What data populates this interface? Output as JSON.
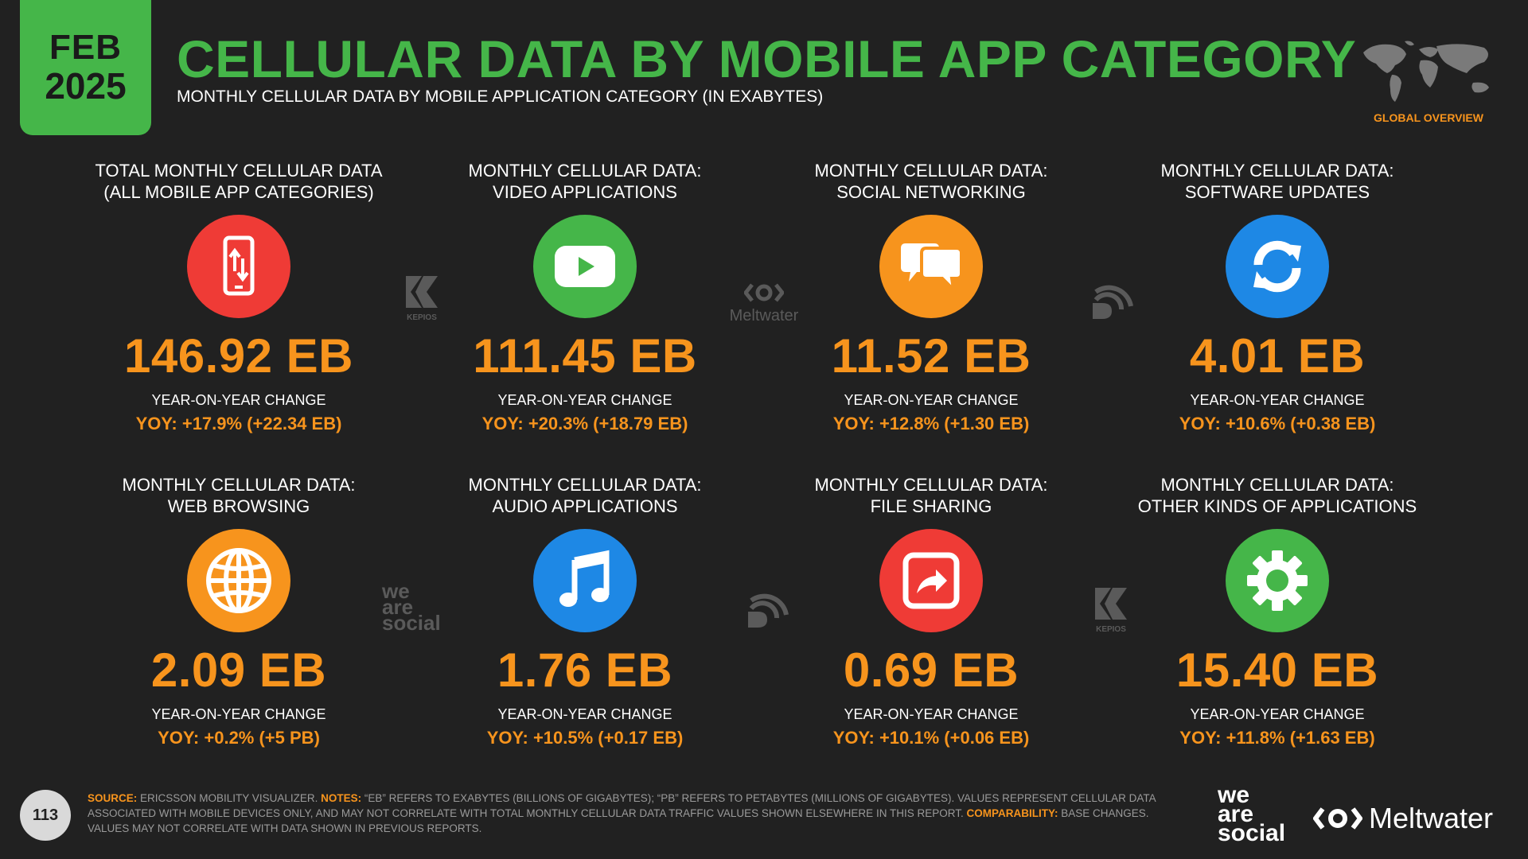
{
  "header": {
    "month": "FEB",
    "year": "2025",
    "title": "CELLULAR DATA BY MOBILE APP CATEGORY",
    "subtitle": "MONTHLY CELLULAR DATA BY MOBILE APPLICATION CATEGORY (IN EXABYTES)",
    "region_label": "GLOBAL OVERVIEW"
  },
  "colors": {
    "background": "#212121",
    "accent_green": "#45b649",
    "accent_orange": "#f7941d",
    "red": "#ef3b36",
    "blue": "#1e88e5"
  },
  "cards": [
    {
      "label_line1": "TOTAL MONTHLY CELLULAR DATA",
      "label_line2": "(ALL MOBILE APP CATEGORIES)",
      "value": "146.92 EB",
      "yoy_label": "YEAR-ON-YEAR CHANGE",
      "yoy": "YOY: +17.9% (+22.34 EB)",
      "icon": "mobile-data-icon",
      "color": "#ef3b36"
    },
    {
      "label_line1": "MONTHLY CELLULAR DATA:",
      "label_line2": "VIDEO APPLICATIONS",
      "value": "111.45 EB",
      "yoy_label": "YEAR-ON-YEAR CHANGE",
      "yoy": "YOY: +20.3% (+18.79 EB)",
      "icon": "video-play-icon",
      "color": "#45b649"
    },
    {
      "label_line1": "MONTHLY CELLULAR DATA:",
      "label_line2": "SOCIAL NETWORKING",
      "value": "11.52 EB",
      "yoy_label": "YEAR-ON-YEAR CHANGE",
      "yoy": "YOY: +12.8% (+1.30 EB)",
      "icon": "chat-bubbles-icon",
      "color": "#f7941d"
    },
    {
      "label_line1": "MONTHLY CELLULAR DATA:",
      "label_line2": "SOFTWARE UPDATES",
      "value": "4.01 EB",
      "yoy_label": "YEAR-ON-YEAR CHANGE",
      "yoy": "YOY: +10.6% (+0.38 EB)",
      "icon": "refresh-icon",
      "color": "#1e88e5"
    },
    {
      "label_line1": "MONTHLY CELLULAR DATA:",
      "label_line2": "WEB BROWSING",
      "value": "2.09 EB",
      "yoy_label": "YEAR-ON-YEAR CHANGE",
      "yoy": "YOY: +0.2% (+5 PB)",
      "icon": "globe-icon",
      "color": "#f7941d"
    },
    {
      "label_line1": "MONTHLY CELLULAR DATA:",
      "label_line2": "AUDIO APPLICATIONS",
      "value": "1.76 EB",
      "yoy_label": "YEAR-ON-YEAR CHANGE",
      "yoy": "YOY: +10.5% (+0.17 EB)",
      "icon": "music-note-icon",
      "color": "#1e88e5"
    },
    {
      "label_line1": "MONTHLY CELLULAR DATA:",
      "label_line2": "FILE SHARING",
      "value": "0.69 EB",
      "yoy_label": "YEAR-ON-YEAR CHANGE",
      "yoy": "YOY: +10.1% (+0.06 EB)",
      "icon": "share-arrow-icon",
      "color": "#ef3b36"
    },
    {
      "label_line1": "MONTHLY CELLULAR DATA:",
      "label_line2": "OTHER KINDS OF APPLICATIONS",
      "value": "15.40 EB",
      "yoy_label": "YEAR-ON-YEAR CHANGE",
      "yoy": "YOY: +11.8% (+1.63 EB)",
      "icon": "gear-icon",
      "color": "#45b649"
    }
  ],
  "watermarks": {
    "kepios": "KEPIOS",
    "meltwater": "Meltwater",
    "we": "we",
    "are": "are",
    "social": "social"
  },
  "footer": {
    "page_number": "113",
    "source_label": "SOURCE:",
    "source_text": "ERICSSON MOBILITY VISUALIZER.",
    "notes_label": "NOTES:",
    "notes_text": "“EB” REFERS TO EXABYTES (BILLIONS OF GIGABYTES); “PB” REFERS TO PETABYTES (MILLIONS OF GIGABYTES). VALUES REPRESENT CELLULAR DATA ASSOCIATED WITH MOBILE DEVICES ONLY, AND MAY NOT CORRELATE WITH TOTAL MONTHLY CELLULAR DATA TRAFFIC VALUES SHOWN ELSEWHERE IN THIS REPORT.",
    "comparability_label": "COMPARABILITY:",
    "comparability_text": "BASE CHANGES. VALUES MAY NOT CORRELATE WITH DATA SHOWN IN PREVIOUS REPORTS.",
    "brand_we": "we",
    "brand_are": "are",
    "brand_social": "social",
    "brand_meltwater": "Meltwater"
  }
}
